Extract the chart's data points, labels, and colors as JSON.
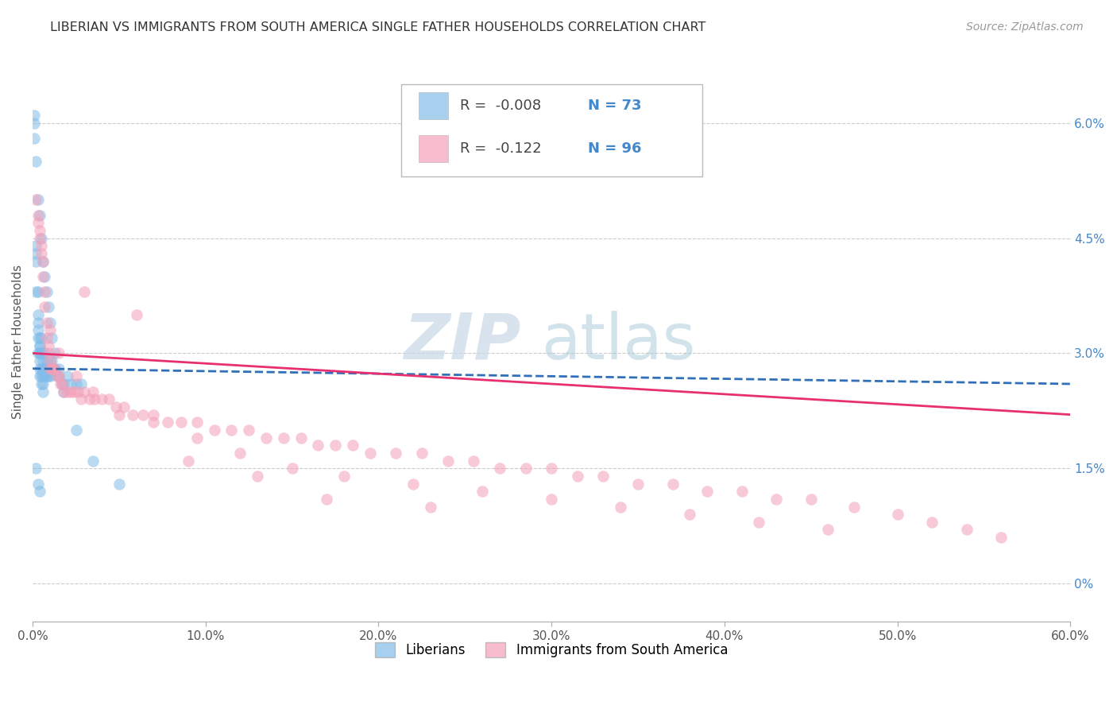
{
  "title": "LIBERIAN VS IMMIGRANTS FROM SOUTH AMERICA SINGLE FATHER HOUSEHOLDS CORRELATION CHART",
  "source": "Source: ZipAtlas.com",
  "ylabel": "Single Father Households",
  "xlim": [
    0.0,
    0.6
  ],
  "ylim": [
    -0.005,
    0.068
  ],
  "xticks": [
    0.0,
    0.1,
    0.2,
    0.3,
    0.4,
    0.5,
    0.6
  ],
  "xticklabels": [
    "0.0%",
    "10.0%",
    "20.0%",
    "30.0%",
    "40.0%",
    "50.0%",
    "60.0%"
  ],
  "yticks_right": [
    0.0,
    0.015,
    0.03,
    0.045,
    0.06
  ],
  "ytick_right_labels": [
    "0%",
    "1.5%",
    "3.0%",
    "4.5%",
    "6.0%"
  ],
  "liberian_R": -0.008,
  "liberian_N": 73,
  "south_america_R": -0.122,
  "south_america_N": 96,
  "blue_color": "#82bce8",
  "pink_color": "#f4a0b8",
  "blue_line_color": "#3070b8",
  "pink_line_color": "#e83070",
  "watermark_zip": "ZIP",
  "watermark_atlas": "atlas",
  "background_color": "#ffffff",
  "legend_label_blue": "Liberians",
  "legend_label_pink": "Immigrants from South America",
  "liberian_x": [
    0.001,
    0.001,
    0.001,
    0.002,
    0.002,
    0.002,
    0.002,
    0.003,
    0.003,
    0.003,
    0.003,
    0.003,
    0.003,
    0.004,
    0.004,
    0.004,
    0.004,
    0.004,
    0.004,
    0.004,
    0.004,
    0.005,
    0.005,
    0.005,
    0.005,
    0.005,
    0.006,
    0.006,
    0.006,
    0.006,
    0.006,
    0.006,
    0.007,
    0.007,
    0.007,
    0.008,
    0.008,
    0.008,
    0.009,
    0.009,
    0.01,
    0.01,
    0.011,
    0.011,
    0.012,
    0.013,
    0.014,
    0.015,
    0.017,
    0.018,
    0.02,
    0.022,
    0.025,
    0.028,
    0.002,
    0.003,
    0.004,
    0.005,
    0.006,
    0.007,
    0.008,
    0.009,
    0.01,
    0.011,
    0.013,
    0.015,
    0.018,
    0.025,
    0.035,
    0.05,
    0.002,
    0.003,
    0.004
  ],
  "liberian_y": [
    0.06,
    0.061,
    0.058,
    0.042,
    0.044,
    0.043,
    0.038,
    0.035,
    0.034,
    0.038,
    0.033,
    0.032,
    0.03,
    0.031,
    0.032,
    0.03,
    0.029,
    0.031,
    0.03,
    0.028,
    0.027,
    0.032,
    0.03,
    0.028,
    0.027,
    0.026,
    0.03,
    0.029,
    0.028,
    0.027,
    0.026,
    0.025,
    0.03,
    0.028,
    0.027,
    0.029,
    0.028,
    0.027,
    0.028,
    0.027,
    0.029,
    0.027,
    0.029,
    0.028,
    0.028,
    0.028,
    0.027,
    0.027,
    0.026,
    0.026,
    0.027,
    0.026,
    0.026,
    0.026,
    0.055,
    0.05,
    0.048,
    0.045,
    0.042,
    0.04,
    0.038,
    0.036,
    0.034,
    0.032,
    0.03,
    0.028,
    0.025,
    0.02,
    0.016,
    0.013,
    0.015,
    0.013,
    0.012
  ],
  "south_america_x": [
    0.002,
    0.003,
    0.003,
    0.004,
    0.004,
    0.005,
    0.005,
    0.006,
    0.006,
    0.007,
    0.007,
    0.008,
    0.008,
    0.009,
    0.009,
    0.01,
    0.01,
    0.011,
    0.012,
    0.013,
    0.014,
    0.015,
    0.016,
    0.017,
    0.018,
    0.02,
    0.022,
    0.024,
    0.026,
    0.028,
    0.03,
    0.033,
    0.036,
    0.04,
    0.044,
    0.048,
    0.053,
    0.058,
    0.064,
    0.07,
    0.078,
    0.086,
    0.095,
    0.105,
    0.115,
    0.125,
    0.135,
    0.145,
    0.155,
    0.165,
    0.175,
    0.185,
    0.195,
    0.21,
    0.225,
    0.24,
    0.255,
    0.27,
    0.285,
    0.3,
    0.315,
    0.33,
    0.35,
    0.37,
    0.39,
    0.41,
    0.43,
    0.45,
    0.475,
    0.5,
    0.52,
    0.54,
    0.56,
    0.01,
    0.015,
    0.025,
    0.035,
    0.05,
    0.07,
    0.095,
    0.12,
    0.15,
    0.18,
    0.22,
    0.26,
    0.3,
    0.34,
    0.38,
    0.42,
    0.46,
    0.03,
    0.06,
    0.09,
    0.13,
    0.17,
    0.23
  ],
  "south_america_y": [
    0.05,
    0.048,
    0.047,
    0.046,
    0.045,
    0.044,
    0.043,
    0.042,
    0.04,
    0.038,
    0.036,
    0.034,
    0.032,
    0.031,
    0.03,
    0.029,
    0.028,
    0.028,
    0.028,
    0.028,
    0.027,
    0.027,
    0.026,
    0.026,
    0.025,
    0.025,
    0.025,
    0.025,
    0.025,
    0.024,
    0.025,
    0.024,
    0.024,
    0.024,
    0.024,
    0.023,
    0.023,
    0.022,
    0.022,
    0.022,
    0.021,
    0.021,
    0.021,
    0.02,
    0.02,
    0.02,
    0.019,
    0.019,
    0.019,
    0.018,
    0.018,
    0.018,
    0.017,
    0.017,
    0.017,
    0.016,
    0.016,
    0.015,
    0.015,
    0.015,
    0.014,
    0.014,
    0.013,
    0.013,
    0.012,
    0.012,
    0.011,
    0.011,
    0.01,
    0.009,
    0.008,
    0.007,
    0.006,
    0.033,
    0.03,
    0.027,
    0.025,
    0.022,
    0.021,
    0.019,
    0.017,
    0.015,
    0.014,
    0.013,
    0.012,
    0.011,
    0.01,
    0.009,
    0.008,
    0.007,
    0.038,
    0.035,
    0.016,
    0.014,
    0.011,
    0.01
  ]
}
